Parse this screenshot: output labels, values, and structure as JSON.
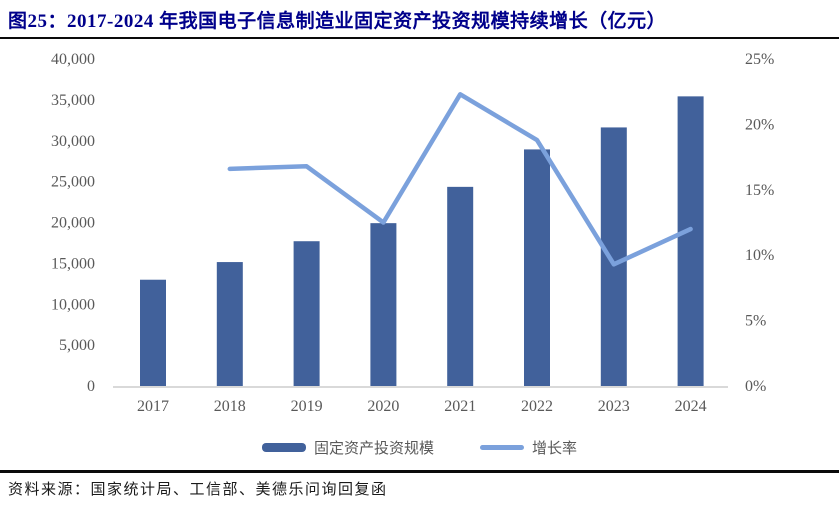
{
  "header": {
    "title": "图25：2017-2024 年我国电子信息制造业固定资产投资规模持续增长（亿元）",
    "title_color": "#00008b"
  },
  "chart_data": {
    "type": "bar",
    "subtype": "bar-and-line-combo",
    "title": "2017-2024 年我国电子信息制造业固定资产投资规模（亿元）",
    "categories": [
      "2017",
      "2018",
      "2019",
      "2020",
      "2021",
      "2022",
      "2023",
      "2024"
    ],
    "series": [
      {
        "name": "固定资产投资规模",
        "type": "bar",
        "axis": "left",
        "color": "#41619B",
        "values": [
          13000,
          15160,
          17710,
          19920,
          24360,
          28940,
          31630,
          35430
        ]
      },
      {
        "name": "增长率",
        "type": "line",
        "axis": "right",
        "color": "#7BA1DC",
        "unit": "%",
        "values": [
          null,
          16.6,
          16.8,
          12.5,
          22.3,
          18.8,
          9.3,
          12.0
        ]
      }
    ],
    "left_axis": {
      "min": 0,
      "max": 40000,
      "tick_step": 5000,
      "tick_labels": [
        "0",
        "5,000",
        "10,000",
        "15,000",
        "20,000",
        "25,000",
        "30,000",
        "35,000",
        "40,000"
      ]
    },
    "right_axis": {
      "min": 0,
      "max": 25,
      "tick_step": 5,
      "tick_labels": [
        "0%",
        "5%",
        "10%",
        "15%",
        "20%",
        "25%"
      ]
    },
    "grid": false,
    "legend_position": "bottom",
    "axis_label_color": "#595959",
    "baseline_color": "#d9d9d9"
  },
  "legend": {
    "items": [
      {
        "label": "固定资产投资规模",
        "color": "#41619B",
        "swatch": "bar"
      },
      {
        "label": "增长率",
        "color": "#7BA1DC",
        "swatch": "line"
      }
    ]
  },
  "footer": {
    "source": "资料来源：国家统计局、工信部、美德乐问询回复函"
  }
}
